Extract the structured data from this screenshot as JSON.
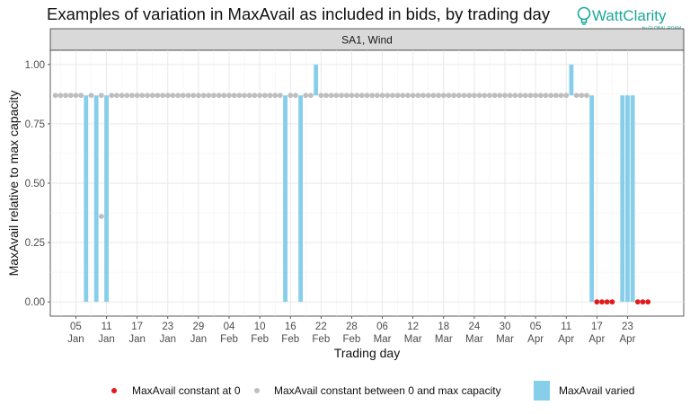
{
  "title": "Examples of variation in MaxAvail as included in bids, by trading day",
  "logo": {
    "brand": "WattClarity",
    "tagline": "by GLOBAL-ROAM",
    "icon": "lightbulb-icon",
    "color": "#1aa89a"
  },
  "chart_data": {
    "type": "bar",
    "panel_label": "SA1, Wind",
    "xlabel": "Trading day",
    "ylabel": "MaxAvail relative to max capacity",
    "ylim": [
      -0.06,
      1.06
    ],
    "yticks": [
      0.0,
      0.25,
      0.5,
      0.75,
      1.0
    ],
    "ytick_labels": [
      "0.00",
      "0.25",
      "0.50",
      "0.75",
      "1.00"
    ],
    "xlim": [
      0,
      124
    ],
    "x_ticks": [
      {
        "day": 5,
        "label": "05",
        "month": "Jan"
      },
      {
        "day": 11,
        "label": "11",
        "month": "Jan"
      },
      {
        "day": 17,
        "label": "17",
        "month": "Jan"
      },
      {
        "day": 23,
        "label": "23",
        "month": "Jan"
      },
      {
        "day": 29,
        "label": "29",
        "month": "Jan"
      },
      {
        "day": 35,
        "label": "04",
        "month": "Feb"
      },
      {
        "day": 41,
        "label": "10",
        "month": "Feb"
      },
      {
        "day": 47,
        "label": "16",
        "month": "Feb"
      },
      {
        "day": 53,
        "label": "22",
        "month": "Feb"
      },
      {
        "day": 59,
        "label": "28",
        "month": "Feb"
      },
      {
        "day": 65,
        "label": "06",
        "month": "Mar"
      },
      {
        "day": 71,
        "label": "12",
        "month": "Mar"
      },
      {
        "day": 77,
        "label": "18",
        "month": "Mar"
      },
      {
        "day": 83,
        "label": "24",
        "month": "Mar"
      },
      {
        "day": 89,
        "label": "30",
        "month": "Mar"
      },
      {
        "day": 95,
        "label": "05",
        "month": "Apr"
      },
      {
        "day": 101,
        "label": "11",
        "month": "Apr"
      },
      {
        "day": 107,
        "label": "17",
        "month": "Apr"
      },
      {
        "day": 113,
        "label": "23",
        "month": "Apr"
      }
    ],
    "series": [
      {
        "name": "MaxAvail varied",
        "type": "range_bar",
        "color": "#87ceeb",
        "points": [
          {
            "day": 7,
            "low": 0.0,
            "high": 0.87
          },
          {
            "day": 9,
            "low": 0.0,
            "high": 0.87
          },
          {
            "day": 11,
            "low": 0.0,
            "high": 0.87
          },
          {
            "day": 46,
            "low": 0.0,
            "high": 0.87
          },
          {
            "day": 49,
            "low": 0.0,
            "high": 0.87
          },
          {
            "day": 52,
            "low": 0.87,
            "high": 1.0
          },
          {
            "day": 102,
            "low": 0.87,
            "high": 1.0
          },
          {
            "day": 106,
            "low": 0.0,
            "high": 0.87
          },
          {
            "day": 112,
            "low": 0.0,
            "high": 0.87
          },
          {
            "day": 113,
            "low": 0.0,
            "high": 0.87
          },
          {
            "day": 114,
            "low": 0.0,
            "high": 0.87
          }
        ]
      },
      {
        "name": "MaxAvail constant between 0 and max capacity",
        "type": "scatter",
        "color": "#bebebe",
        "value": 0.87,
        "days_range": [
          1,
          105
        ],
        "skip_days": [
          7,
          9,
          11,
          46,
          49,
          52,
          102
        ],
        "extra_points": [
          {
            "day": 10,
            "value": 0.36
          }
        ]
      },
      {
        "name": "MaxAvail constant at 0",
        "type": "scatter",
        "color": "#e31a1c",
        "value": 0.0,
        "days": [
          107,
          108,
          109,
          110,
          115,
          116,
          117
        ]
      }
    ],
    "grid": true,
    "legend": "bottom"
  }
}
